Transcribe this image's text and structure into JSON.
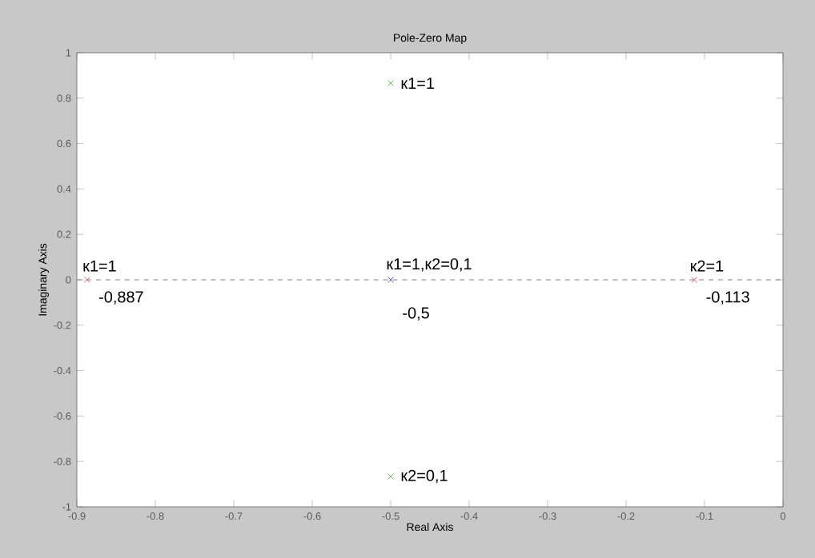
{
  "chart_data": {
    "type": "scatter",
    "title": "Pole-Zero Map",
    "xlabel": "Real Axis",
    "ylabel": "Imaginary Axis",
    "xlim": [
      -0.9,
      0
    ],
    "ylim": [
      -1,
      1
    ],
    "xticks": [
      -0.9,
      -0.8,
      -0.7,
      -0.6,
      -0.5,
      -0.4,
      -0.3,
      -0.2,
      -0.1,
      0
    ],
    "yticks": [
      -1,
      -0.8,
      -0.6,
      -0.4,
      -0.2,
      0,
      0.2,
      0.4,
      0.6,
      0.8,
      1
    ],
    "marker": "cross",
    "grid": false,
    "series": [
      {
        "color": "#e04040",
        "x": [
          -0.887,
          -0.113
        ],
        "values": [
          0,
          0
        ]
      },
      {
        "color": "#4040e0",
        "x": [
          -0.5
        ],
        "values": [
          0
        ]
      },
      {
        "color": "#40b040",
        "x": [
          -0.5,
          -0.5
        ],
        "values": [
          0.866,
          -0.866
        ]
      }
    ],
    "ref_lines": [
      {
        "axis": "y",
        "value": 0,
        "color": "#808080",
        "line_style": "dashed"
      }
    ],
    "annotations": [
      {
        "text": "к1=1",
        "x": -0.887,
        "y": 0
      },
      {
        "text": "-0,887",
        "x": -0.887,
        "y": 0
      },
      {
        "text": "к1=1,к2=0,1",
        "x": -0.5,
        "y": 0
      },
      {
        "text": "-0,5",
        "x": -0.5,
        "y": 0
      },
      {
        "text": "к2=1",
        "x": -0.113,
        "y": 0
      },
      {
        "text": "-0,113",
        "x": -0.113,
        "y": 0
      },
      {
        "text": "к1=1",
        "x": -0.5,
        "y": 0.866
      },
      {
        "text": "к2=0,1",
        "x": -0.5,
        "y": -0.866
      }
    ]
  }
}
